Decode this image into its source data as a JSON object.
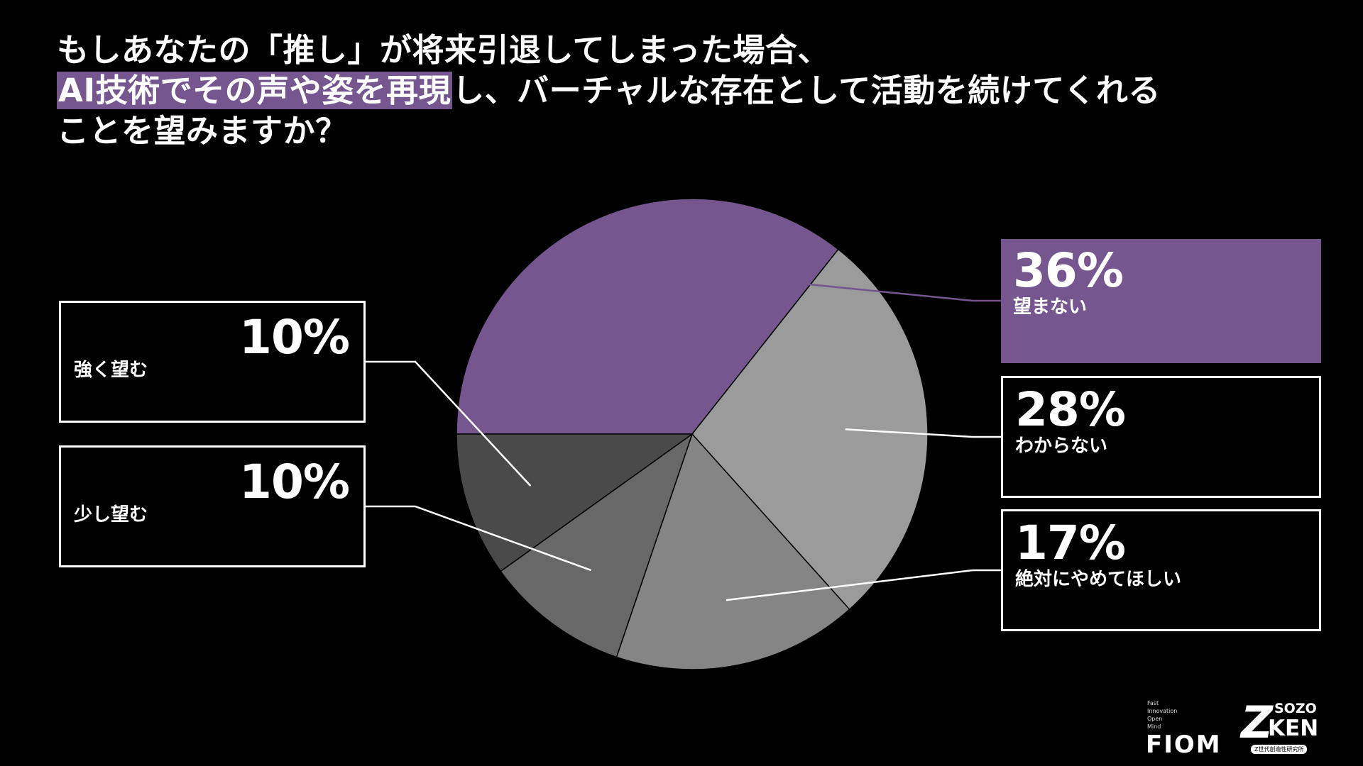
{
  "title": {
    "line1": "もしあなたの「推し」が将来引退してしまった場合、",
    "line2_highlight": "AI技術でその声や姿を再現",
    "line2_rest": "し、バーチャルな存在として活動を続けてくれる",
    "line3": "ことを望みますか？"
  },
  "colors": {
    "accent": "#76568f",
    "background": "#000000"
  },
  "chart_data": {
    "type": "pie",
    "title": "もしあなたの「推し」が将来引退してしまった場合、AI技術でその声や姿を再現し、バーチャルな存在として活動を続けてくれることを望みますか？",
    "slices": [
      {
        "label": "望まない",
        "value": 36,
        "display": "36%",
        "color": "#76568f"
      },
      {
        "label": "わからない",
        "value": 28,
        "display": "28%",
        "color": "#9b9b9b"
      },
      {
        "label": "絶対にやめてほしい",
        "value": 17,
        "display": "17%",
        "color": "#858585"
      },
      {
        "label": "少し望む",
        "value": 10,
        "display": "10%",
        "color": "#686868"
      },
      {
        "label": "強く望む",
        "value": 10,
        "display": "10%",
        "color": "#4a4a4a"
      }
    ],
    "start_angle_deg": 180,
    "direction": "clockwise",
    "legend": "callout boxes left and right"
  },
  "logos": {
    "fiom_small": [
      "Fast",
      "Innovation",
      "Open",
      "Mind"
    ],
    "fiom": "FIOM",
    "z_mark": "Z",
    "sozo": "SOZO",
    "ken": "KEN",
    "zsub": "Z世代創造性研究所"
  }
}
